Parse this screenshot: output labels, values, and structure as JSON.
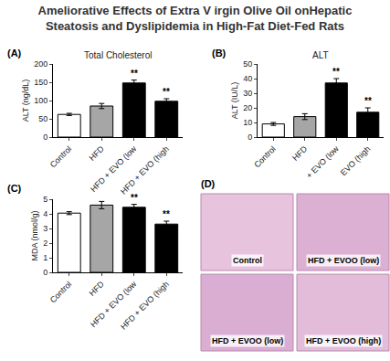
{
  "figure_title": [
    "Ameliorative Effects of Extra V irgin Olive Oil onHepatic",
    "Steatosis and Dyslipidemia in High-Fat Diet-Fed Rats"
  ],
  "chart_data": [
    {
      "type": "bar",
      "panel": "(A)",
      "title": "Total Cholesterol",
      "y_label": "ALT (ng/dL)",
      "categories": [
        "Control",
        "HFD",
        "HFD + EVO (low",
        "HFD + EVO (high"
      ],
      "values": [
        62,
        85,
        148,
        98
      ],
      "errors": [
        3,
        7,
        8,
        7
      ],
      "colors": [
        "#ffffff",
        "#a6a6a6",
        "#000000",
        "#000000"
      ],
      "significance": [
        null,
        null,
        "**",
        "**"
      ],
      "ylim": [
        0,
        200
      ],
      "yticks": [
        0,
        50,
        100,
        150,
        200
      ],
      "grid": false
    },
    {
      "type": "bar",
      "panel": "(B)",
      "title": "ALT",
      "y_label": "ALT (IU/L)",
      "categories": [
        "Control",
        "HFD",
        "+ EVO (low",
        "EVO (high"
      ],
      "values": [
        9,
        14,
        37,
        17
      ],
      "errors": [
        1,
        2,
        3,
        3
      ],
      "colors": [
        "#ffffff",
        "#a6a6a6",
        "#000000",
        "#000000"
      ],
      "significance": [
        null,
        null,
        "**",
        "**"
      ],
      "ylim": [
        0,
        50
      ],
      "yticks": [
        0,
        10,
        20,
        30,
        40,
        50
      ],
      "grid": false
    },
    {
      "type": "bar",
      "panel": "(C)",
      "y_label": "MDA (nmol/g)",
      "categories": [
        "Control",
        "HFD",
        "HFD + EVO (low",
        "HFD + EVO (high"
      ],
      "values": [
        4.05,
        4.6,
        4.45,
        3.3
      ],
      "errors": [
        0.1,
        0.25,
        0.2,
        0.2
      ],
      "colors": [
        "#ffffff",
        "#a6a6a6",
        "#000000",
        "#000000"
      ],
      "significance": [
        null,
        null,
        "**",
        "**"
      ],
      "ylim": [
        0,
        5
      ],
      "yticks": [
        0,
        1,
        2,
        3,
        4,
        5
      ],
      "grid": false
    }
  ],
  "panel_d": {
    "panel": "(D)",
    "images": [
      "Control",
      "HFD + EVOO (low)",
      "HFD + EVOO (low)",
      "HFD + EVOO (high)"
    ]
  }
}
